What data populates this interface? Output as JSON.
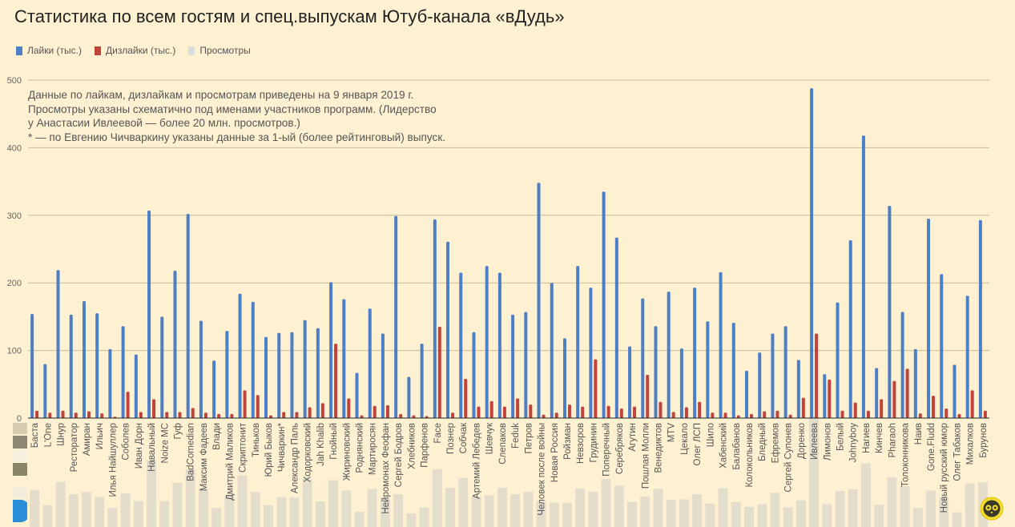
{
  "title": "Статистика по всем гостям и спец.выпускам Ютуб-канала «вДудь»",
  "legend": [
    {
      "label": "Лайки (тыс.)",
      "color": "#4e7fc6"
    },
    {
      "label": "Дизлайки (тыс.)",
      "color": "#c0443b"
    },
    {
      "label": "Просмотры",
      "color": "#e4ddcc"
    }
  ],
  "note": [
    "Данные по лайкам, дизлайкам и просмотрам приведены на 9 января 2019 г.",
    "Просмотры указаны схематично под именами участников программ. (Лидерство",
    "у Анастасии Ивлеевой — более 20 млн. просмотров.)",
    "* — по Евгению Чичваркину указаны данные за 1-ый (более рейтинговый) выпуск."
  ],
  "logo_icon": "vdud-owl-logo-icon",
  "chart_data": {
    "type": "bar",
    "title": "Статистика по всем гостям и спец.выпускам Ютуб-канала «вДудь»",
    "xlabel": "",
    "ylabel": "",
    "ylim": [
      0,
      500
    ],
    "yticks": [
      "0",
      "100",
      "200",
      "300",
      "400",
      "500"
    ],
    "grid": true,
    "legend_position": "top-left",
    "categories": [
      "Баста",
      "L'One",
      "Шнур",
      "Ресторатор",
      "Амиран",
      "Ильич",
      "Илья Найшуллер",
      "Соболев",
      "Иван Дорн",
      "Навальный",
      "Noize MC",
      "Гуф",
      "BadComedian",
      "Максим Фадеев",
      "Влади",
      "Дмитрий Маликов",
      "Скриптонит",
      "Тиньков",
      "Юрий Быков",
      "Чичваркин*",
      "Александр Паль",
      "Ходорковский",
      "Jah Khalib",
      "Гнойный",
      "Жириновский",
      "Роднянский",
      "Мартиросян",
      "Нейромонах Феофан",
      "Сергей Бодров",
      "Хлебников",
      "Парфенов",
      "Face",
      "Познер",
      "Собчак",
      "Артемий Лебедев",
      "Шевчук",
      "Слепаков",
      "Feduk",
      "Петров",
      "Человек после войны",
      "Новая Россия",
      "Ройзман",
      "Невзоров",
      "Грудинин",
      "Поперечный",
      "Серебряков",
      "Агутин",
      "Пошлая Молли",
      "Венедиктов",
      "MTV",
      "Цекало",
      "Олег ЛСП",
      "Шило",
      "Хабенский",
      "Балабанов",
      "Колокольников",
      "Бледный",
      "Ефремов",
      "Сергей Супонев",
      "Доренко",
      "Ивлеева",
      "Лимонов",
      "Белый",
      "Johnyboy",
      "Нагиев",
      "Кинчев",
      "Pharaoh",
      "Толоконникова",
      "Наив",
      "Gone.Fludd",
      "Новый русский юмор",
      "Олег Табаков",
      "Михалков",
      "Бурунов"
    ],
    "series": [
      {
        "name": "Лайки (тыс.)",
        "color": "#4e7fc6",
        "values": [
          154,
          80,
          219,
          153,
          173,
          155,
          102,
          136,
          94,
          307,
          150,
          218,
          302,
          144,
          85,
          129,
          184,
          172,
          120,
          126,
          127,
          145,
          133,
          201,
          176,
          67,
          162,
          125,
          299,
          61,
          110,
          294,
          261,
          215,
          127,
          225,
          215,
          153,
          157,
          348,
          200,
          118,
          225,
          193,
          335,
          267,
          106,
          177,
          136,
          187,
          103,
          193,
          143,
          216,
          141,
          70,
          97,
          125,
          136,
          86,
          488,
          65,
          171,
          263,
          418,
          74,
          314,
          157,
          102,
          295,
          213,
          79,
          181,
          293
        ]
      },
      {
        "name": "Дизлайки (тыс.)",
        "color": "#c0443b",
        "values": [
          11,
          8,
          11,
          8,
          10,
          7,
          2,
          39,
          9,
          28,
          9,
          9,
          15,
          8,
          6,
          6,
          41,
          34,
          4,
          9,
          9,
          16,
          22,
          110,
          29,
          4,
          18,
          19,
          6,
          4,
          3,
          135,
          8,
          58,
          17,
          25,
          17,
          29,
          20,
          5,
          8,
          20,
          17,
          87,
          18,
          14,
          17,
          64,
          24,
          9,
          16,
          24,
          8,
          8,
          4,
          6,
          10,
          11,
          5,
          30,
          125,
          57,
          11,
          23,
          11,
          28,
          55,
          73,
          7,
          33,
          14,
          6,
          41,
          11
        ]
      },
      {
        "name": "Просмотры",
        "color": "#e4ddcc",
        "values": [
          6.8,
          4.0,
          8.3,
          6.0,
          6.4,
          5.5,
          3.5,
          6.2,
          4.8,
          12.3,
          4.8,
          8.1,
          10.6,
          7.1,
          3.5,
          5.7,
          9.5,
          6.4,
          4.0,
          5.5,
          5.4,
          8.8,
          4.7,
          8.6,
          6.7,
          2.8,
          7.0,
          5.3,
          6.0,
          2.5,
          3.6,
          10.6,
          7.2,
          9.0,
          5.6,
          5.8,
          7.2,
          6.0,
          6.5,
          4.8,
          4.5,
          4.4,
          7.1,
          6.5,
          8.8,
          7.6,
          4.6,
          5.6,
          7.0,
          5.0,
          5.1,
          6.0,
          4.3,
          7.1,
          4.6,
          3.7,
          4.2,
          6.3,
          3.6,
          4.9,
          20.3,
          4.2,
          6.6,
          6.9,
          11.7,
          4.1,
          9.1,
          7.5,
          3.5,
          6.7,
          5.5,
          2.7,
          8.0,
          8.2
        ]
      }
    ]
  }
}
